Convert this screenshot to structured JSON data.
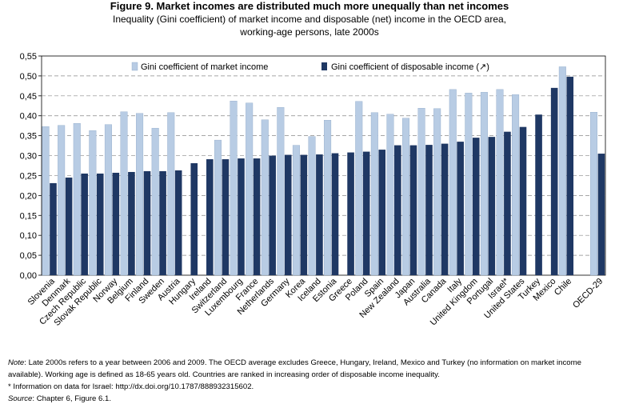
{
  "title": "Figure 9. Market incomes are distributed much more unequally than net incomes",
  "subtitle_line1": "Inequality (Gini coefficient) of market income and disposable (net) income in the OECD area,",
  "subtitle_line2": "working-age persons, late 2000s",
  "notes": {
    "note_label": "Note",
    "note_text": ": Late 2000s refers to a year between 2006 and 2009. The OECD average excludes Greece, Hungary, Ireland, Mexico and Turkey (no information on market income available). Working age is defined as 18-65 years old. Countries are ranked in increasing order of disposable income inequality.",
    "info_text": "* Information on data for Israel: http://dx.doi.org/10.1787/888932315602.",
    "source_label": "Source",
    "source_text": ": Chapter 6, Figure 6.1."
  },
  "colors": {
    "market": "#b8cce4",
    "disposable": "#1f3864",
    "grid": "#888888"
  },
  "chart_data": {
    "type": "bar",
    "ylim": [
      0,
      0.55
    ],
    "yticks": [
      "0,00",
      "0,05",
      "0,10",
      "0,15",
      "0,20",
      "0,25",
      "0,30",
      "0,35",
      "0,40",
      "0,45",
      "0,50",
      "0,55"
    ],
    "grid": true,
    "legend_position": "top",
    "categories": [
      "Slovenia",
      "Denmark",
      "Czech Republic",
      "Slovak Republic",
      "Norway",
      "Belgium",
      "Finland",
      "Sweden",
      "Austria",
      "Hungary",
      "Ireland",
      "Switzerland",
      "Luxembourg",
      "France",
      "Netherlands",
      "Germany",
      "Korea",
      "Iceland",
      "Estonia",
      "Greece",
      "Poland",
      "Spain",
      "New Zealand",
      "Japan",
      "Australia",
      "Canada",
      "Italy",
      "United Kingdom",
      "Portugal",
      "Israel*",
      "United States",
      "Turkey",
      "Mexico",
      "Chile",
      "",
      "OECD-29"
    ],
    "series": [
      {
        "name": "Gini coefficient of market income",
        "values": [
          0.373,
          0.376,
          0.381,
          0.363,
          0.378,
          0.41,
          0.406,
          0.369,
          0.408,
          null,
          null,
          0.339,
          0.437,
          0.432,
          0.39,
          0.421,
          0.326,
          0.348,
          0.389,
          null,
          0.436,
          0.408,
          0.404,
          0.394,
          0.419,
          0.418,
          0.466,
          0.457,
          0.459,
          0.466,
          0.453,
          null,
          null,
          0.523,
          null,
          0.409
        ]
      },
      {
        "name": "Gini coefficient of disposable income (↗)",
        "values": [
          0.231,
          0.245,
          0.255,
          0.255,
          0.257,
          0.259,
          0.261,
          0.261,
          0.263,
          0.281,
          0.291,
          0.291,
          0.293,
          0.293,
          0.3,
          0.302,
          0.302,
          0.303,
          0.306,
          0.308,
          0.31,
          0.315,
          0.326,
          0.326,
          0.327,
          0.33,
          0.335,
          0.345,
          0.347,
          0.36,
          0.372,
          0.403,
          0.47,
          0.498,
          null,
          0.305
        ]
      }
    ]
  }
}
